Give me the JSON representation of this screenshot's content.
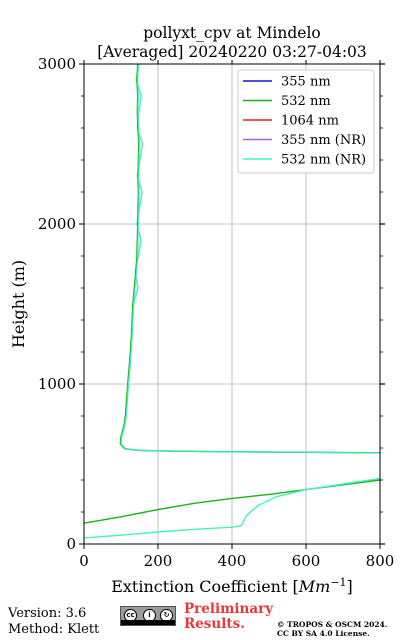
{
  "chart_data": {
    "type": "line",
    "title_line1": "pollyxt_cpv at Mindelo",
    "title_line2": "[Averaged] 20240220 03:27-04:03",
    "xlabel": "Extinction Coefficient [",
    "xlabel_unit": "Mm",
    "xlabel_exp": "−1",
    "xlabel_close": "]",
    "ylabel": "Height (m)",
    "xlim": [
      0,
      800
    ],
    "ylim": [
      0,
      3000
    ],
    "xticks": [
      "0",
      "200",
      "400",
      "600",
      "800"
    ],
    "yticks": [
      "0",
      "1000",
      "2000",
      "3000"
    ],
    "grid": true,
    "legend_position": "top-right",
    "series": [
      {
        "name": "355 nm",
        "color": "#1414d9",
        "points": []
      },
      {
        "name": "532 nm",
        "color": "#18b418",
        "points": [
          [
            800,
            400
          ],
          [
            700,
            370
          ],
          [
            600,
            340
          ],
          [
            500,
            310
          ],
          [
            400,
            285
          ],
          [
            300,
            255
          ],
          [
            200,
            215
          ],
          [
            100,
            170
          ],
          [
            0,
            130
          ]
        ]
      },
      {
        "name": "1064 nm",
        "color": "#e02020",
        "points": []
      },
      {
        "name": "355 nm (NR)",
        "color": "#a461e8",
        "points": []
      },
      {
        "name": "532 nm (NR)",
        "color": "#45f0c4",
        "points": [
          [
            0,
            38
          ],
          [
            100,
            55
          ],
          [
            200,
            75
          ],
          [
            300,
            92
          ],
          [
            400,
            105
          ],
          [
            425,
            115
          ],
          [
            440,
            180
          ],
          [
            470,
            240
          ],
          [
            520,
            295
          ],
          [
            600,
            340
          ],
          [
            700,
            375
          ],
          [
            800,
            410
          ]
        ]
      }
    ],
    "upper_profile_points": [
      [
        800,
        570
      ],
      [
        600,
        573
      ],
      [
        400,
        576
      ],
      [
        250,
        580
      ],
      [
        150,
        585
      ],
      [
        110,
        595
      ],
      [
        98,
        625
      ],
      [
        100,
        670
      ],
      [
        108,
        740
      ],
      [
        112,
        800
      ],
      [
        115,
        900
      ],
      [
        118,
        1000
      ],
      [
        122,
        1100
      ],
      [
        125,
        1200
      ],
      [
        128,
        1300
      ],
      [
        130,
        1400
      ],
      [
        132,
        1500
      ],
      [
        136,
        1600
      ],
      [
        140,
        1700
      ],
      [
        143,
        1800
      ],
      [
        144,
        1900
      ],
      [
        145,
        2000
      ],
      [
        146,
        2100
      ],
      [
        147,
        2200
      ],
      [
        146,
        2300
      ],
      [
        147,
        2400
      ],
      [
        148,
        2500
      ],
      [
        146,
        2600
      ],
      [
        144,
        2700
      ],
      [
        145,
        2800
      ],
      [
        143,
        2900
      ],
      [
        145,
        3000
      ]
    ]
  },
  "footer": {
    "version": "Version: 3.6",
    "method": "Method: Klett",
    "preliminary_line1": "Preliminary",
    "preliminary_line2": "Results.",
    "credit_line1": "© TROPOS & OSCM 2024.",
    "credit_line2": "CC BY SA 4.0 License.",
    "license_badge": "cc by sa"
  }
}
